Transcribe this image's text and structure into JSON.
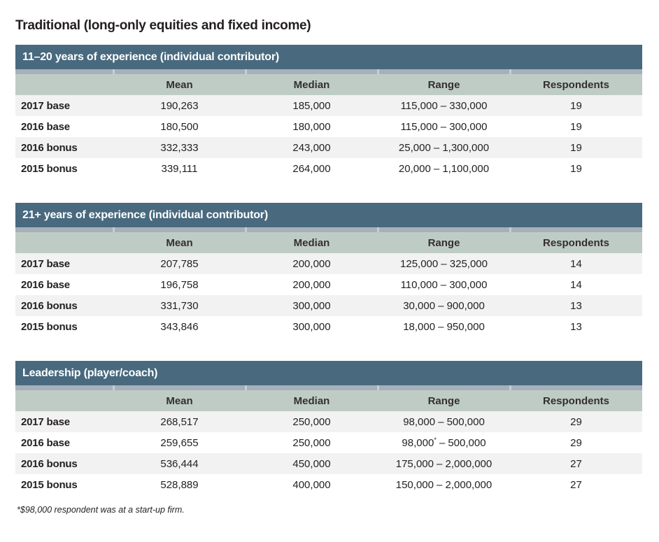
{
  "title": "Traditional (long-only equities and fixed income)",
  "footnote": "*$98,000 respondent was at a start-up firm.",
  "colors": {
    "section_bar_bg": "#48697e",
    "section_bar_text": "#ffffff",
    "column_strip": "#a6b0bb",
    "column_head_bg": "#bfccc5",
    "row_alt_bg": "#f2f2f2",
    "body_text": "#231f20"
  },
  "columns": [
    "Mean",
    "Median",
    "Range",
    "Respondents"
  ],
  "tables": [
    {
      "section_title": "11–20 years of experience (individual contributor)",
      "rows": [
        {
          "label": "2017 base",
          "mean": "190,263",
          "median": "185,000",
          "range_min": "115,000",
          "range_note": "",
          "range_rest": "– 330,000",
          "respondents": "19"
        },
        {
          "label": "2016 base",
          "mean": "180,500",
          "median": "180,000",
          "range_min": "115,000",
          "range_note": "",
          "range_rest": "– 300,000",
          "respondents": "19"
        },
        {
          "label": "2016 bonus",
          "mean": "332,333",
          "median": "243,000",
          "range_min": "25,000",
          "range_note": "",
          "range_rest": "– 1,300,000",
          "respondents": "19"
        },
        {
          "label": "2015 bonus",
          "mean": "339,111",
          "median": "264,000",
          "range_min": "20,000",
          "range_note": "",
          "range_rest": "– 1,100,000",
          "respondents": "19"
        }
      ]
    },
    {
      "section_title": "21+ years of experience (individual contributor)",
      "rows": [
        {
          "label": "2017 base",
          "mean": "207,785",
          "median": "200,000",
          "range_min": "125,000",
          "range_note": "",
          "range_rest": "– 325,000",
          "respondents": "14"
        },
        {
          "label": "2016 base",
          "mean": "196,758",
          "median": "200,000",
          "range_min": "110,000",
          "range_note": "",
          "range_rest": "– 300,000",
          "respondents": "14"
        },
        {
          "label": "2016 bonus",
          "mean": "331,730",
          "median": "300,000",
          "range_min": "30,000",
          "range_note": "",
          "range_rest": "– 900,000",
          "respondents": "13"
        },
        {
          "label": "2015 bonus",
          "mean": "343,846",
          "median": "300,000",
          "range_min": "18,000",
          "range_note": "",
          "range_rest": "– 950,000",
          "respondents": "13"
        }
      ]
    },
    {
      "section_title": "Leadership (player/coach)",
      "rows": [
        {
          "label": "2017 base",
          "mean": "268,517",
          "median": "250,000",
          "range_min": "98,000",
          "range_note": "",
          "range_rest": "– 500,000",
          "respondents": "29"
        },
        {
          "label": "2016 base",
          "mean": "259,655",
          "median": "250,000",
          "range_min": "98,000",
          "range_note": "*",
          "range_rest": "– 500,000",
          "respondents": "29"
        },
        {
          "label": "2016 bonus",
          "mean": "536,444",
          "median": "450,000",
          "range_min": "175,000",
          "range_note": "",
          "range_rest": "– 2,000,000",
          "respondents": "27"
        },
        {
          "label": "2015 bonus",
          "mean": "528,889",
          "median": "400,000",
          "range_min": "150,000",
          "range_note": "",
          "range_rest": "– 2,000,000",
          "respondents": "27"
        }
      ]
    }
  ]
}
